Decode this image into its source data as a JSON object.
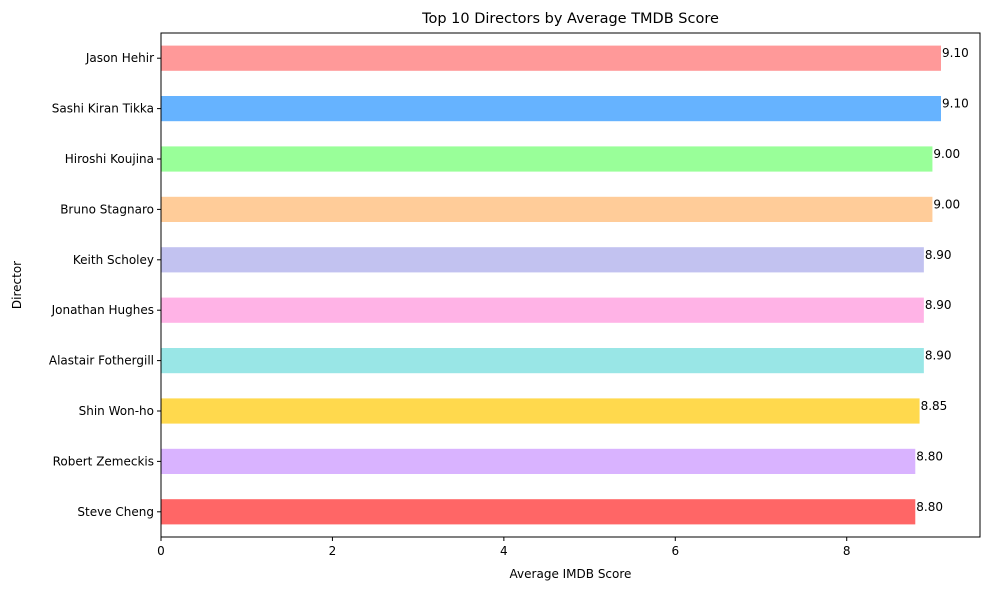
{
  "chart_data": {
    "type": "bar",
    "orientation": "horizontal",
    "title": "Top 10 Directors by Average TMDB Score",
    "xlabel": "Average IMDB Score",
    "ylabel": "Director",
    "xlim": [
      0,
      9.555
    ],
    "xticks": [
      0,
      2,
      4,
      6,
      8
    ],
    "grid": false,
    "categories": [
      "Jason Hehir",
      "Sashi Kiran Tikka",
      "Hiroshi Koujina",
      "Bruno Stagnaro",
      "Keith Scholey",
      "Jonathan Hughes",
      "Alastair Fothergill",
      "Shin Won-ho",
      "Robert Zemeckis",
      "Steve Cheng"
    ],
    "values": [
      9.1,
      9.1,
      9.0,
      9.0,
      8.9,
      8.9,
      8.9,
      8.85,
      8.8,
      8.8
    ],
    "value_labels": [
      "9.10",
      "9.10",
      "9.00",
      "9.00",
      "8.90",
      "8.90",
      "8.90",
      "8.85",
      "8.80",
      "8.80"
    ],
    "colors": [
      "#ff9999",
      "#66b3ff",
      "#99ff99",
      "#ffcc99",
      "#c2c2f0",
      "#ffb3e6",
      "#99e6e6",
      "#ffd94d",
      "#d9b3ff",
      "#ff6666"
    ]
  }
}
